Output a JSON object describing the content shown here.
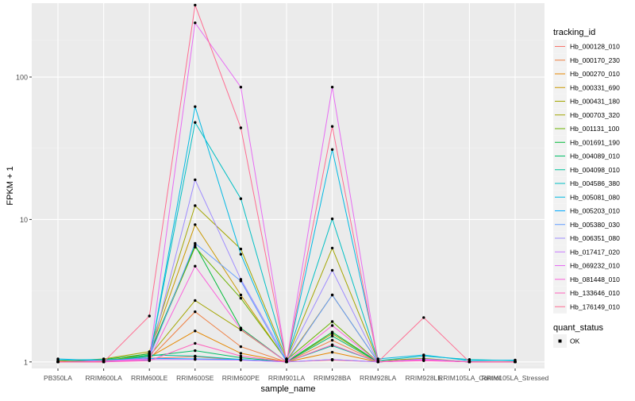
{
  "chart_data": {
    "type": "line",
    "title": "",
    "xlabel": "sample_name",
    "ylabel": "FPKM + 1",
    "y_scale": "log10",
    "y_ticks": [
      1,
      10,
      100
    ],
    "y_tick_labels": [
      "1",
      "10",
      "100"
    ],
    "ylim": [
      0.9,
      330
    ],
    "grid": true,
    "legend_position": "right",
    "categories": [
      "PB350LA",
      "RRIM600LA",
      "RRIM600LE",
      "RRIM600SE",
      "RRIM600PE",
      "RRIM901LA",
      "RRIM928BA",
      "RRIM928LA",
      "RRIM928LE",
      "RRIM105LA_Control",
      "RRIM105LA_Stressed"
    ],
    "colors": {
      "panel_background": "#ebebeb",
      "grid_major": "#ffffff",
      "grid_minor": "#f4f4f4",
      "point": "#000000",
      "text": "#4d4d4d"
    },
    "legend_color": {
      "title": "tracking_id"
    },
    "legend_shape": {
      "title": "quant_status",
      "items": [
        "OK"
      ]
    },
    "series": [
      {
        "name": "Hb_000128_010",
        "color": "#f8766d",
        "values": [
          1.0,
          1.0,
          1.06,
          1.09,
          1.03,
          1.0,
          1.03,
          1.0,
          1.03,
          1.0,
          1.0
        ]
      },
      {
        "name": "Hb_000170_230",
        "color": "#ee8043",
        "values": [
          1.0,
          1.02,
          1.05,
          2.25,
          1.28,
          1.0,
          1.42,
          1.0,
          1.04,
          1.0,
          1.0
        ]
      },
      {
        "name": "Hb_000270_010",
        "color": "#e58700",
        "values": [
          1.0,
          1.0,
          1.08,
          1.65,
          1.15,
          1.0,
          1.17,
          1.0,
          1.03,
          1.0,
          1.0
        ]
      },
      {
        "name": "Hb_000331_690",
        "color": "#c99800",
        "values": [
          1.02,
          1.0,
          1.15,
          9.2,
          2.95,
          1.02,
          2.95,
          1.0,
          1.05,
          1.0,
          1.0
        ]
      },
      {
        "name": "Hb_000431_180",
        "color": "#a3a500",
        "values": [
          1.0,
          1.03,
          1.1,
          2.7,
          1.68,
          1.0,
          1.58,
          1.0,
          1.04,
          1.0,
          1.0
        ]
      },
      {
        "name": "Hb_000703_320",
        "color": "#a3a500",
        "values": [
          1.0,
          1.05,
          1.18,
          12.5,
          6.2,
          1.05,
          6.3,
          1.02,
          1.06,
          1.0,
          1.0
        ]
      },
      {
        "name": "Hb_001131_100",
        "color": "#6bb100",
        "values": [
          1.0,
          1.02,
          1.12,
          6.4,
          2.8,
          1.03,
          1.92,
          1.0,
          1.04,
          1.0,
          1.0
        ]
      },
      {
        "name": "Hb_001691_190",
        "color": "#00ba38",
        "values": [
          1.0,
          1.04,
          1.14,
          6.6,
          1.73,
          1.0,
          1.62,
          1.0,
          1.05,
          1.0,
          1.0
        ]
      },
      {
        "name": "Hb_004089_010",
        "color": "#00be67",
        "values": [
          1.0,
          1.0,
          1.1,
          1.2,
          1.07,
          1.0,
          1.52,
          1.0,
          1.04,
          1.0,
          1.0
        ]
      },
      {
        "name": "Hb_004098_010",
        "color": "#00c19a",
        "values": [
          1.0,
          1.0,
          1.12,
          1.1,
          1.04,
          1.0,
          1.3,
          1.0,
          1.03,
          1.0,
          1.0
        ]
      },
      {
        "name": "Hb_004586_380",
        "color": "#00bfc4",
        "values": [
          1.03,
          1.04,
          1.05,
          48.0,
          14.0,
          1.05,
          10.1,
          1.02,
          1.1,
          1.04,
          1.02
        ]
      },
      {
        "name": "Hb_005081_080",
        "color": "#00b9e3",
        "values": [
          1.05,
          1.02,
          1.03,
          62.0,
          5.7,
          1.0,
          31.0,
          1.05,
          1.12,
          1.02,
          1.03
        ]
      },
      {
        "name": "Hb_005203_010",
        "color": "#00a9ff",
        "values": [
          1.0,
          1.0,
          1.06,
          1.05,
          1.04,
          1.0,
          1.04,
          1.0,
          1.03,
          1.0,
          1.0
        ]
      },
      {
        "name": "Hb_005380_030",
        "color": "#619cff",
        "values": [
          1.0,
          1.0,
          1.08,
          6.8,
          3.7,
          1.0,
          2.95,
          1.0,
          1.04,
          1.0,
          1.0
        ]
      },
      {
        "name": "Hb_006351_080",
        "color": "#9f8cff",
        "values": [
          1.0,
          1.0,
          1.05,
          19.0,
          3.8,
          1.04,
          4.4,
          1.0,
          1.05,
          1.0,
          1.0
        ]
      },
      {
        "name": "Hb_017417_020",
        "color": "#c77cff",
        "values": [
          1.0,
          1.0,
          1.04,
          1.04,
          1.03,
          1.0,
          1.04,
          1.0,
          1.03,
          1.0,
          1.0
        ]
      },
      {
        "name": "Hb_069232_010",
        "color": "#e76bf3",
        "values": [
          1.0,
          1.02,
          1.05,
          240.0,
          85.0,
          1.0,
          85.0,
          1.0,
          1.04,
          1.0,
          1.0
        ]
      },
      {
        "name": "Hb_081448_010",
        "color": "#fa62db",
        "values": [
          1.0,
          1.0,
          1.04,
          4.7,
          1.7,
          1.0,
          1.8,
          1.0,
          1.03,
          1.0,
          1.0
        ]
      },
      {
        "name": "Hb_133646_010",
        "color": "#ff62bc",
        "values": [
          1.0,
          1.0,
          1.02,
          1.35,
          1.1,
          1.0,
          1.32,
          1.0,
          1.02,
          1.0,
          1.0
        ]
      },
      {
        "name": "Hb_176149_010",
        "color": "#ff6c91",
        "values": [
          1.0,
          1.0,
          2.1,
          320.0,
          44.0,
          1.0,
          45.0,
          1.0,
          2.05,
          1.0,
          1.0
        ]
      }
    ]
  }
}
